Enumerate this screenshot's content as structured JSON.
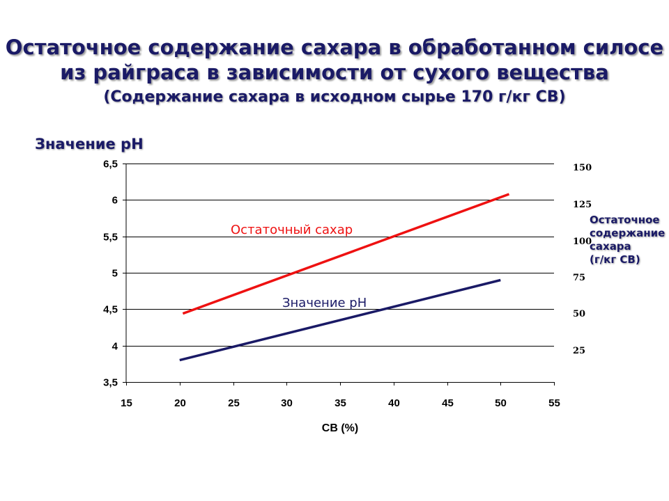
{
  "title_line1": "Остаточное содержание сахара в обработанном силосе",
  "title_line2": "из райграса в зависимости от сухого вещества",
  "subtitle": "(Содержание сахара в исходном сырье 170 г/кг СВ)",
  "chart_data": {
    "type": "line",
    "xlabel": "СВ (%)",
    "ylabel": "Значение рН",
    "y2label": "Остаточное содержание сахара (г/кг СВ)",
    "y2label_lines": [
      "Остаточное",
      "содержание",
      "сахара",
      "(г/кг СВ)"
    ],
    "xlim": [
      15,
      55
    ],
    "ylim": [
      3.5,
      6.5
    ],
    "y2lim": [
      0,
      150
    ],
    "xticks": [
      "15",
      "20",
      "25",
      "30",
      "35",
      "40",
      "45",
      "50",
      "55"
    ],
    "yticks": [
      "3,5",
      "4",
      "4,5",
      "5",
      "5,5",
      "6",
      "6,5"
    ],
    "y2ticks": [
      "25",
      "50",
      "75",
      "100",
      "125",
      "150"
    ],
    "grid": "horizontal",
    "series": [
      {
        "name": "Значение рН",
        "axis": "left",
        "color": "#1a1a66",
        "x": [
          20,
          50
        ],
        "y": [
          3.8,
          4.9
        ]
      },
      {
        "name": "Остаточный сахар",
        "axis": "right",
        "color": "#ee1111",
        "x": [
          20.3,
          50.8
        ],
        "y": [
          47,
          129
        ]
      }
    ]
  }
}
